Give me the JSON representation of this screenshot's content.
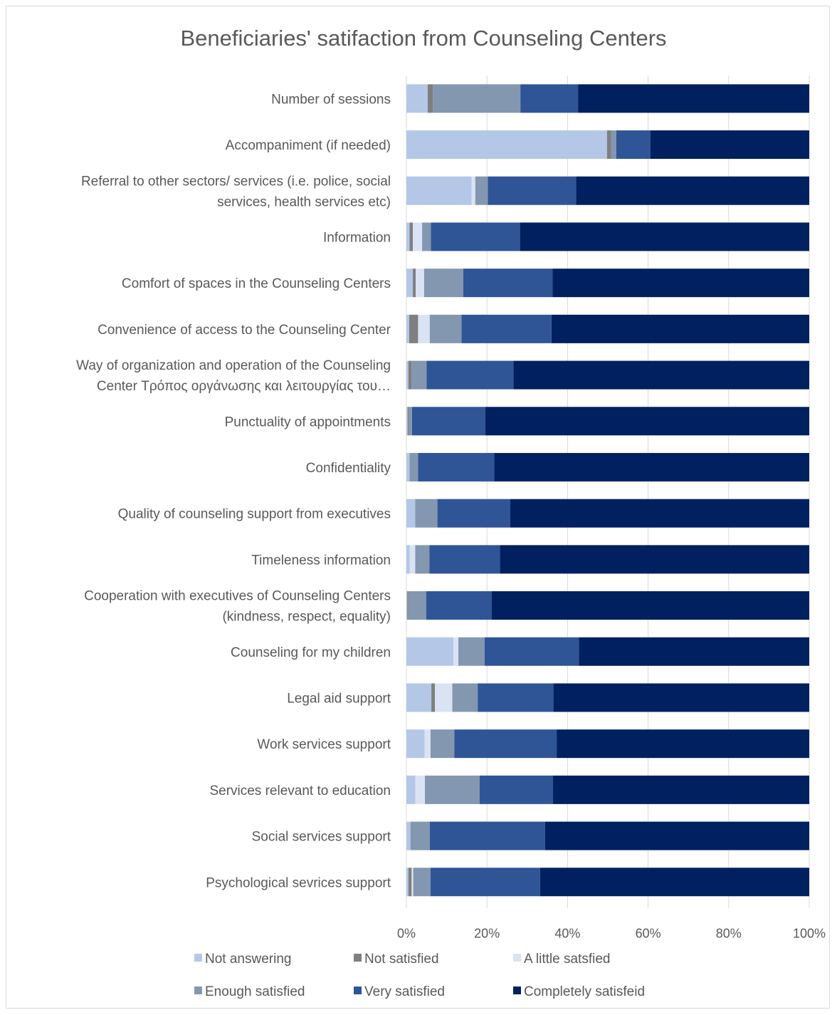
{
  "chart_data": {
    "type": "bar",
    "orientation": "horizontal",
    "stacked": "percent",
    "title": "Beneficiaries' satifaction from Counseling Centers",
    "categories": [
      [
        "Number of sessions"
      ],
      [
        "Accompaniment (if needed)"
      ],
      [
        "Referral  to other sectors/ services (i.e. police, social",
        "services, health services etc)"
      ],
      [
        "Information"
      ],
      [
        "Comfort of spaces in the Counseling Centers"
      ],
      [
        "Convenience of access to the Counseling Center"
      ],
      [
        "Way of organization and operation of the Counseling",
        "Center Τρόπος οργάνωσης και λειτουργίας του…"
      ],
      [
        "Punctuality of appointments"
      ],
      [
        "Confidentiality"
      ],
      [
        "Quality of counseling support from executives"
      ],
      [
        "Timeleness information"
      ],
      [
        "Cooperation with executives of Counseling Centers",
        "(kindness, respect, equality)"
      ],
      [
        "Counseling for my children"
      ],
      [
        "Legal aid support"
      ],
      [
        "Work services support"
      ],
      [
        "Services relevant to education"
      ],
      [
        "Social services support"
      ],
      [
        "Psychological sevrices support"
      ]
    ],
    "series": [
      {
        "name": "Not answering",
        "color": "#b4c7e7",
        "values": [
          5.3,
          49.8,
          16.2,
          0.8,
          1.6,
          0.7,
          0.5,
          0.3,
          0.8,
          2.2,
          0.8,
          0.2,
          11.7,
          6.2,
          4.5,
          2.2,
          1.0,
          0.5
        ]
      },
      {
        "name": "Not satisfied",
        "color": "#7f7f7f",
        "values": [
          1.3,
          1.0,
          0.0,
          0.8,
          0.7,
          2.2,
          0.8,
          0.3,
          0.0,
          0.0,
          0.0,
          0.3,
          0.0,
          0.9,
          0.0,
          0.0,
          0.0,
          0.8
        ]
      },
      {
        "name": "A little satsfied",
        "color": "#dae3f3",
        "values": [
          0.0,
          0.0,
          0.9,
          2.3,
          2.1,
          2.9,
          0.0,
          0.0,
          0.0,
          0.0,
          1.4,
          0.0,
          1.2,
          4.3,
          1.5,
          2.4,
          0.0,
          0.4
        ]
      },
      {
        "name": "Enough satisfied",
        "color": "#8497b0",
        "values": [
          21.7,
          1.3,
          3.1,
          2.2,
          9.7,
          7.9,
          3.7,
          0.8,
          2.1,
          5.5,
          3.5,
          4.4,
          6.5,
          6.3,
          5.9,
          13.6,
          4.8,
          4.3
        ]
      },
      {
        "name": "Very satisfied",
        "color": "#2f5597",
        "values": [
          14.3,
          8.5,
          21.9,
          22.1,
          22.2,
          22.3,
          21.6,
          18.2,
          18.9,
          18.1,
          17.5,
          16.3,
          23.4,
          18.8,
          25.4,
          18.2,
          28.6,
          27.2
        ]
      },
      {
        "name": "Completely satisfeid",
        "color": "#002060",
        "values": [
          57.4,
          39.4,
          57.9,
          71.8,
          63.7,
          64.0,
          73.4,
          80.4,
          78.2,
          74.2,
          76.8,
          78.8,
          57.2,
          63.5,
          62.7,
          63.6,
          65.6,
          66.8
        ]
      }
    ],
    "x_ticks": [
      "0%",
      "20%",
      "40%",
      "60%",
      "80%",
      "100%"
    ],
    "xlim": [
      0,
      100
    ],
    "grid": true,
    "legend": "bottom"
  }
}
